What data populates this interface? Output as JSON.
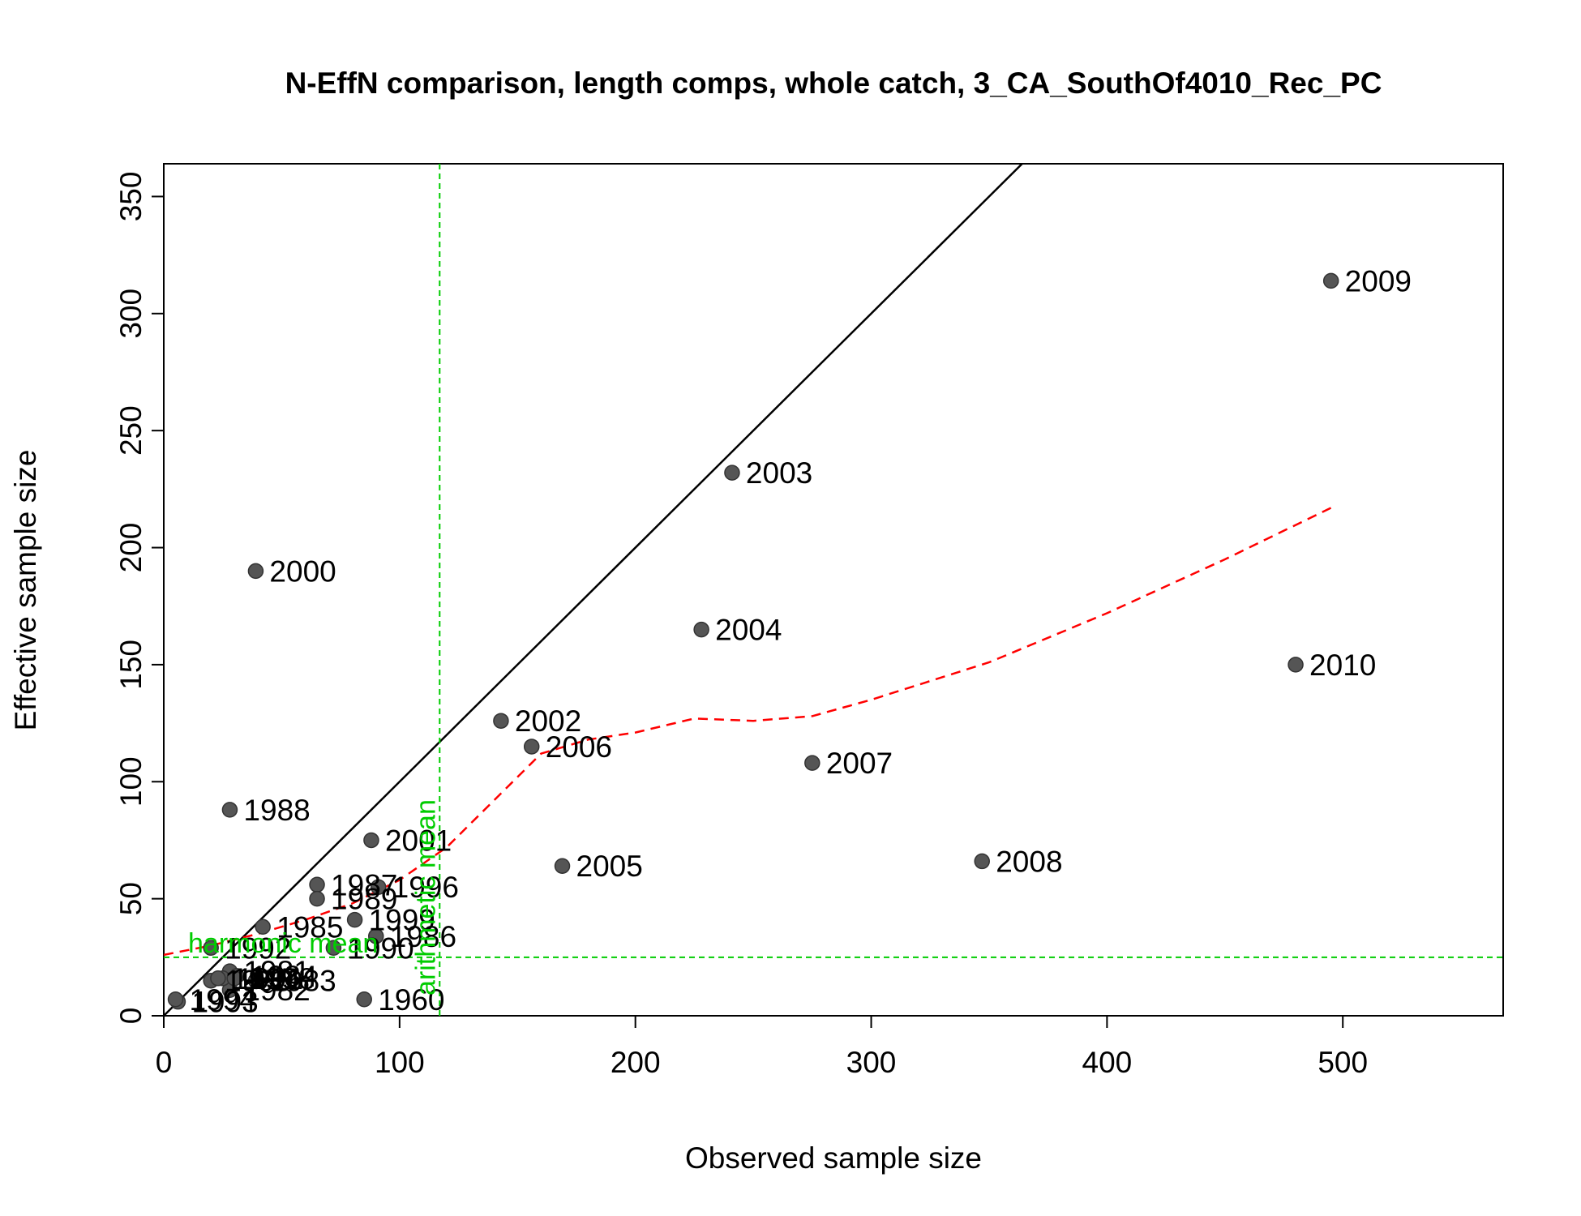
{
  "chart_data": {
    "type": "scatter",
    "title": "N-EffN comparison, length comps, whole catch, 3_CA_SouthOf4010_Rec_PC",
    "xlabel": "Observed sample size",
    "ylabel": "Effective sample size",
    "xlim": [
      0,
      568
    ],
    "ylim": [
      0,
      364
    ],
    "xticks": [
      0,
      100,
      200,
      300,
      400,
      500
    ],
    "yticks": [
      0,
      50,
      100,
      150,
      200,
      250,
      300,
      350
    ],
    "grid": false,
    "legend": "none",
    "colors": {
      "points": "#555555",
      "identity_line": "#000000",
      "smoother": "#FF0000",
      "means": "#00CC00"
    },
    "points": [
      {
        "label": "1960",
        "x": 85,
        "y": 7
      },
      {
        "label": "1981",
        "x": 28,
        "y": 19
      },
      {
        "label": "1982",
        "x": 28,
        "y": 11
      },
      {
        "label": "1983",
        "x": 39,
        "y": 15
      },
      {
        "label": "1984",
        "x": 31,
        "y": 17
      },
      {
        "label": "1985",
        "x": 42,
        "y": 38
      },
      {
        "label": "1986",
        "x": 90,
        "y": 34
      },
      {
        "label": "1987",
        "x": 65,
        "y": 56
      },
      {
        "label": "1988",
        "x": 28,
        "y": 88
      },
      {
        "label": "1989",
        "x": 65,
        "y": 50
      },
      {
        "label": "1990",
        "x": 72,
        "y": 29
      },
      {
        "label": "1991",
        "x": 25,
        "y": 16
      },
      {
        "label": "1992",
        "x": 20,
        "y": 29
      },
      {
        "label": "1993",
        "x": 6,
        "y": 6
      },
      {
        "label": "1994",
        "x": 5,
        "y": 7
      },
      {
        "label": "1995",
        "x": 20,
        "y": 15
      },
      {
        "label": "1996",
        "x": 91,
        "y": 55
      },
      {
        "label": "1997",
        "x": 23,
        "y": 16
      },
      {
        "label": "1998",
        "x": 30,
        "y": 16
      },
      {
        "label": "1999",
        "x": 81,
        "y": 41
      },
      {
        "label": "2000",
        "x": 39,
        "y": 190
      },
      {
        "label": "2001",
        "x": 88,
        "y": 75
      },
      {
        "label": "2002",
        "x": 143,
        "y": 126
      },
      {
        "label": "2003",
        "x": 241,
        "y": 232
      },
      {
        "label": "2004",
        "x": 228,
        "y": 165
      },
      {
        "label": "2005",
        "x": 169,
        "y": 64
      },
      {
        "label": "2006",
        "x": 156,
        "y": 115
      },
      {
        "label": "2007",
        "x": 275,
        "y": 108
      },
      {
        "label": "2008",
        "x": 347,
        "y": 66
      },
      {
        "label": "2009",
        "x": 495,
        "y": 314
      },
      {
        "label": "2010",
        "x": 480,
        "y": 150
      }
    ],
    "identity_line": {
      "slope": 1,
      "intercept": 0
    },
    "smoother": {
      "x": [
        0,
        20,
        40,
        60,
        80,
        100,
        120,
        140,
        160,
        180,
        200,
        225,
        250,
        275,
        300,
        350,
        400,
        450,
        495
      ],
      "y": [
        26,
        30,
        35,
        41,
        48,
        58,
        72,
        92,
        112,
        118,
        121,
        127,
        126,
        128,
        135,
        151,
        172,
        195,
        217
      ]
    },
    "arithmetic_mean": {
      "label": "arithmetic mean",
      "x": 117
    },
    "harmonic_mean": {
      "label": "harmonic mean",
      "y": 25
    }
  }
}
